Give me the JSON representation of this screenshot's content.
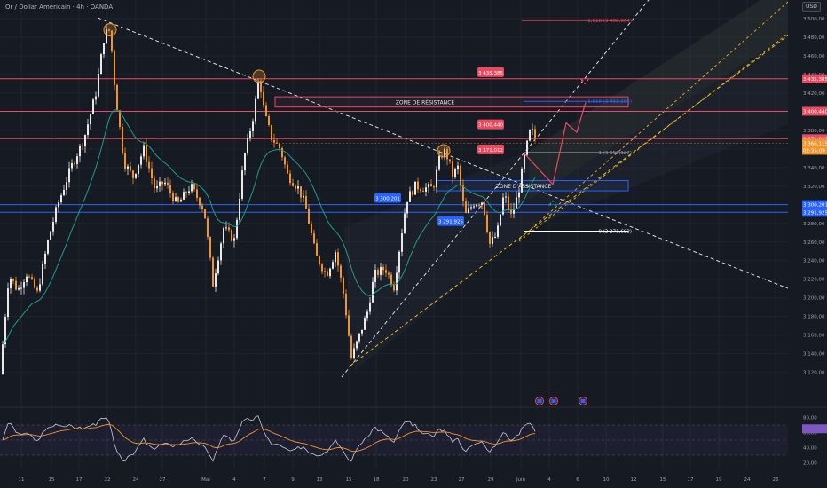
{
  "header": {
    "symbol_title": "Or / Dollar Américain · 4h · OANDA",
    "currency_button": "USD"
  },
  "colors": {
    "background": "#151a23",
    "bull": "#e8e8e8",
    "bear": "#f0952c",
    "ema": "#1f9c8c",
    "resistance": "#e84a5f",
    "support": "#2962ff",
    "trend_white": "#ffffff",
    "trend_yellow": "#e5b826",
    "rsi_line": "#c7c7d6",
    "rsi_ma": "#f0952c"
  },
  "price_axis": {
    "ticks": [
      "3 500,00",
      "3 480,00",
      "3 460,00",
      "3 440,00",
      "3 420,00",
      "3 400,00",
      "3 380,00",
      "3 360,00",
      "3 340,00",
      "3 320,00",
      "3 300,00",
      "3 280,00",
      "3 260,00",
      "3 240,00",
      "3 220,00",
      "3 200,00",
      "3 180,00",
      "3 160,00",
      "3 140,00",
      "3 120,00"
    ]
  },
  "time_axis": {
    "labels": [
      "11",
      "15",
      "17",
      "22",
      "24",
      "27",
      "Mai",
      "4",
      "7",
      "9",
      "13",
      "15",
      "18",
      "20",
      "23",
      "27",
      "29",
      "Juin",
      "4",
      "6",
      "10",
      "12",
      "15",
      "17",
      "19",
      "24",
      "26"
    ]
  },
  "rsi_axis": {
    "ticks": [
      "80,00",
      "60,00",
      "40,00",
      "20,00"
    ]
  },
  "chart_data": {
    "type": "candlestick",
    "y_range": [
      3100,
      3510
    ],
    "levels": [
      {
        "name": "",
        "price": 3435.385,
        "color": "#e84a5f",
        "label": "3 435,385"
      },
      {
        "name": "",
        "price": 3400.44,
        "color": "#e84a5f",
        "label": "3 400,440"
      },
      {
        "name": "",
        "price": 3371.012,
        "color": "#e84a5f",
        "label": "3 371,012"
      },
      {
        "name": "",
        "price": 3300.201,
        "color": "#2962ff",
        "label": "3 300,201"
      },
      {
        "name": "",
        "price": 3291.925,
        "color": "#2962ff",
        "label": "3 291,925"
      }
    ],
    "zones": [
      {
        "label": "ZONE DE RÉSISTANCE",
        "top": 3416,
        "bottom": 3405,
        "color": "#e84a5f"
      },
      {
        "label": "ZONE D'ASSISTANCE",
        "top": 3326,
        "bottom": 3315,
        "color": "#2962ff"
      }
    ],
    "current_price": {
      "label": "3 366,115",
      "countdown": "02:35:09",
      "price": 3366.115
    },
    "fib_levels": [
      {
        "label": "1,618 (3 498,004)",
        "price": 3498.004,
        "color": "#e84a5f"
      },
      {
        "label": "1,618 (3 411,165)",
        "price": 3411.165,
        "color": "#2962ff"
      },
      {
        "label": "1 (3 356,127)",
        "price": 3356.127,
        "color": "#9598a1"
      },
      {
        "label": "0 (3 271,693)",
        "price": 3271.693,
        "color": "#ffffff"
      }
    ],
    "chart_labels": [
      {
        "text": "3 435,385",
        "price": 3442,
        "color": "#e84a5f"
      },
      {
        "text": "3 400,440",
        "price": 3386,
        "color": "#e84a5f"
      },
      {
        "text": "3 371,012",
        "price": 3359,
        "color": "#e84a5f"
      },
      {
        "text": "3 300,201",
        "price": 3307,
        "color": "#2962ff"
      },
      {
        "text": "3 291,925",
        "price": 3282,
        "color": "#2962ff"
      }
    ],
    "ohlc_keypoints": [
      [
        0,
        3118
      ],
      [
        10,
        3225
      ],
      [
        20,
        3208
      ],
      [
        30,
        3226
      ],
      [
        42,
        3205
      ],
      [
        55,
        3265
      ],
      [
        65,
        3300
      ],
      [
        80,
        3340
      ],
      [
        95,
        3372
      ],
      [
        108,
        3420
      ],
      [
        118,
        3484
      ],
      [
        124,
        3488
      ],
      [
        130,
        3420
      ],
      [
        140,
        3345
      ],
      [
        150,
        3330
      ],
      [
        162,
        3360
      ],
      [
        175,
        3315
      ],
      [
        185,
        3325
      ],
      [
        200,
        3300
      ],
      [
        215,
        3320
      ],
      [
        230,
        3295
      ],
      [
        240,
        3215
      ],
      [
        252,
        3275
      ],
      [
        264,
        3262
      ],
      [
        275,
        3350
      ],
      [
        286,
        3398
      ],
      [
        292,
        3438
      ],
      [
        298,
        3398
      ],
      [
        306,
        3372
      ],
      [
        316,
        3360
      ],
      [
        324,
        3332
      ],
      [
        336,
        3318
      ],
      [
        344,
        3300
      ],
      [
        356,
        3245
      ],
      [
        368,
        3225
      ],
      [
        378,
        3250
      ],
      [
        388,
        3200
      ],
      [
        396,
        3135
      ],
      [
        406,
        3162
      ],
      [
        414,
        3185
      ],
      [
        422,
        3225
      ],
      [
        434,
        3232
      ],
      [
        444,
        3212
      ],
      [
        450,
        3252
      ],
      [
        458,
        3305
      ],
      [
        468,
        3320
      ],
      [
        478,
        3318
      ],
      [
        488,
        3318
      ],
      [
        496,
        3352
      ],
      [
        502,
        3358
      ],
      [
        510,
        3332
      ],
      [
        516,
        3340
      ],
      [
        524,
        3288
      ],
      [
        534,
        3302
      ],
      [
        544,
        3304
      ],
      [
        552,
        3258
      ],
      [
        560,
        3268
      ],
      [
        568,
        3312
      ],
      [
        576,
        3288
      ],
      [
        584,
        3312
      ],
      [
        592,
        3356
      ],
      [
        598,
        3382
      ],
      [
        603,
        3372
      ]
    ],
    "forecast_path": [
      [
        590,
        3356
      ],
      [
        623,
        3322
      ],
      [
        638,
        3388
      ],
      [
        650,
        3378
      ],
      [
        660,
        3410
      ]
    ],
    "rsi": {
      "y_range": [
        10,
        90
      ],
      "overbought": 70,
      "oversold": 30,
      "mid": 50,
      "last_value": 65
    },
    "markers": [
      {
        "type": "down_arrow",
        "price": 3428,
        "color": "#e84a5f"
      },
      {
        "type": "up_arrow",
        "price": 3308,
        "color": "#26a69a"
      }
    ]
  }
}
